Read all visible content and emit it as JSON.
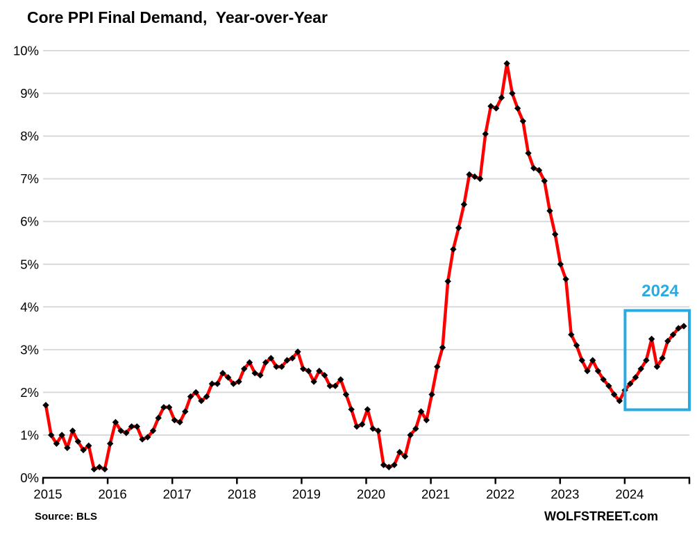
{
  "header": {
    "title": "Core PPI Final Demand,  Year-over-Year"
  },
  "footer": {
    "source": "Source: BLS",
    "watermark": "WOLFSTREET.com"
  },
  "colors": {
    "line": "#ff0000",
    "marker": "#000000",
    "gridline": "#d9d9d9",
    "axis": "#000000",
    "text": "#000000",
    "accent_blue": "#29abe2",
    "background": "#ffffff"
  },
  "chart_data": {
    "type": "line",
    "title": "Core PPI Final Demand,  Year-over-Year",
    "xlabel": "",
    "ylabel": "",
    "frequency": "monthly",
    "start": "2015-01",
    "end": "2024-12",
    "ylim": [
      0,
      10
    ],
    "grid": "horizontal",
    "legend": "none",
    "y_tick_labels": [
      "0%",
      "1%",
      "2%",
      "3%",
      "4%",
      "5%",
      "6%",
      "7%",
      "8%",
      "9%",
      "10%"
    ],
    "x_tick_labels": [
      "2015",
      "2016",
      "2017",
      "2018",
      "2019",
      "2020",
      "2021",
      "2022",
      "2023",
      "2024"
    ],
    "series": [
      {
        "name": "Core PPI Final Demand year-over-year percent change",
        "marker": "diamond",
        "values_by_year": {
          "2015": [
            1.7,
            1.0,
            0.8,
            1.0,
            0.7,
            1.1,
            0.85,
            0.65,
            0.75,
            0.2,
            0.25,
            0.2
          ],
          "2016": [
            0.8,
            1.3,
            1.1,
            1.05,
            1.2,
            1.2,
            0.9,
            0.95,
            1.1,
            1.4,
            1.65,
            1.65
          ],
          "2017": [
            1.35,
            1.3,
            1.55,
            1.9,
            2.0,
            1.8,
            1.9,
            2.2,
            2.2,
            2.45,
            2.35,
            2.2
          ],
          "2018": [
            2.25,
            2.55,
            2.7,
            2.45,
            2.4,
            2.7,
            2.8,
            2.6,
            2.6,
            2.75,
            2.8,
            2.95
          ],
          "2019": [
            2.55,
            2.5,
            2.25,
            2.5,
            2.4,
            2.15,
            2.15,
            2.3,
            1.95,
            1.6,
            1.2,
            1.25
          ],
          "2020": [
            1.6,
            1.15,
            1.1,
            0.3,
            0.25,
            0.3,
            0.6,
            0.5,
            1.0,
            1.15,
            1.55,
            1.35
          ],
          "2021": [
            1.95,
            2.6,
            3.05,
            4.6,
            5.35,
            5.85,
            6.4,
            7.1,
            7.05,
            7.0,
            8.05,
            8.7
          ],
          "2022": [
            8.65,
            8.9,
            9.7,
            9.0,
            8.65,
            8.35,
            7.6,
            7.25,
            7.2,
            6.95,
            6.25,
            5.7
          ],
          "2023": [
            5.0,
            4.65,
            3.35,
            3.1,
            2.75,
            2.5,
            2.75,
            2.5,
            2.3,
            2.15,
            1.95,
            1.8
          ],
          "2024": [
            2.05,
            2.2,
            2.35,
            2.55,
            2.75,
            3.25,
            2.6,
            2.8,
            3.2,
            3.35,
            3.5,
            3.55
          ]
        }
      }
    ],
    "highlight": {
      "label": "2024",
      "from": "2024-01",
      "to": "2024-12"
    }
  }
}
